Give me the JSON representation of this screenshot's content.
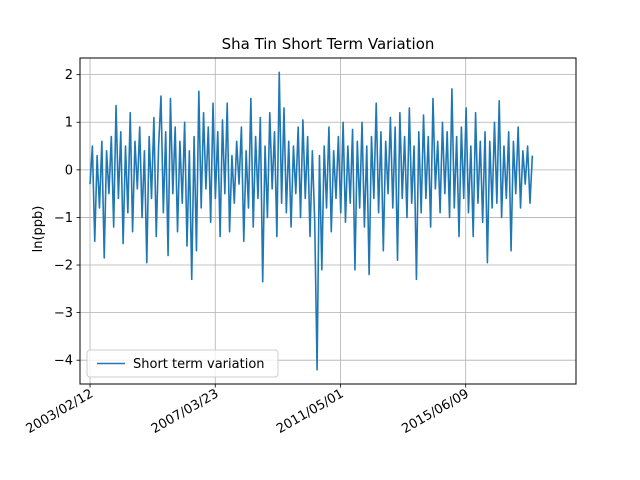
{
  "chart_data": {
    "type": "line",
    "title": "Sha Tin Short Term Variation",
    "xlabel": "",
    "ylabel": "ln(ppb)",
    "x_tick_labels": [
      "2003/02/12",
      "2007/03/23",
      "2011/05/01",
      "2015/06/09"
    ],
    "xlim": [
      "2002/10/15",
      "2019/01/20"
    ],
    "ylim": [
      -4.5,
      2.35
    ],
    "y_ticks": [
      2,
      1,
      0,
      -1,
      -2,
      -3,
      -4
    ],
    "y_tick_labels": [
      "2",
      "1",
      "0",
      "−1",
      "−2",
      "−3",
      "−4"
    ],
    "grid": true,
    "legend": {
      "position": "lower-left",
      "entries": [
        "Short term variation"
      ]
    },
    "color": "#1f77b4",
    "x_start": "2003/02/12",
    "x_end": "2017/08/15",
    "series": [
      {
        "name": "Short term variation",
        "values": [
          -0.3,
          0.5,
          -1.5,
          0.3,
          -0.8,
          0.6,
          -1.85,
          0.4,
          -0.5,
          0.7,
          -1.2,
          1.35,
          -0.6,
          0.8,
          -1.55,
          0.5,
          -0.9,
          1.2,
          -1.3,
          0.6,
          -0.4,
          0.9,
          -1.0,
          0.4,
          -1.95,
          0.7,
          -0.6,
          1.1,
          -1.4,
          0.5,
          1.55,
          -0.9,
          0.8,
          -1.8,
          1.5,
          -0.5,
          0.9,
          -1.3,
          0.6,
          -0.7,
          1.0,
          -1.6,
          0.4,
          -2.3,
          0.7,
          -1.7,
          1.65,
          -0.8,
          1.2,
          -0.4,
          0.9,
          -1.1,
          1.4,
          -0.6,
          0.8,
          -1.4,
          1.05,
          -0.5,
          1.4,
          -1.3,
          0.3,
          -0.7,
          0.6,
          -0.3,
          0.9,
          -1.5,
          0.4,
          -0.8,
          1.5,
          -1.2,
          0.7,
          -0.6,
          1.1,
          -2.35,
          0.5,
          -1.0,
          1.2,
          -0.4,
          0.8,
          -1.4,
          2.05,
          -0.7,
          1.3,
          -0.9,
          0.6,
          -1.2,
          0.5,
          -0.5,
          0.9,
          -1.0,
          1.05,
          -0.6,
          0.7,
          -1.4,
          0.4,
          -1.1,
          -4.2,
          0.3,
          -2.1,
          0.5,
          -0.8,
          0.9,
          -1.3,
          0.4,
          -0.6,
          0.7,
          -0.9,
          1.0,
          -1.1,
          0.5,
          -0.7,
          0.85,
          -2.1,
          0.6,
          -0.8,
          1.0,
          -1.2,
          0.5,
          -2.2,
          0.7,
          -0.6,
          1.4,
          -0.9,
          0.8,
          -1.7,
          0.6,
          -0.5,
          1.1,
          -0.8,
          0.9,
          -1.9,
          1.2,
          -0.6,
          0.7,
          -1.0,
          1.3,
          -0.7,
          0.5,
          -2.3,
          0.8,
          -0.9,
          1.15,
          -0.6,
          0.7,
          -1.2,
          1.5,
          -0.4,
          0.6,
          -0.9,
          1.0,
          -0.5,
          0.8,
          -1.0,
          1.7,
          -0.8,
          0.7,
          -1.4,
          0.9,
          -0.6,
          1.3,
          -0.9,
          0.5,
          -1.4,
          1.2,
          -0.7,
          0.6,
          -1.1,
          0.8,
          -1.95,
          0.6,
          -0.8,
          1.0,
          -0.7,
          1.45,
          -1.0,
          0.5,
          -0.6,
          0.8,
          -1.7,
          0.6,
          -0.5,
          0.9,
          -0.8,
          0.4,
          -0.3,
          0.5,
          -0.7,
          0.3
        ]
      }
    ]
  }
}
